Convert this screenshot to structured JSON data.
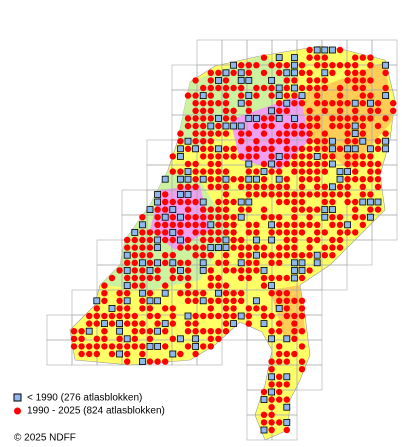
{
  "legend": {
    "items": [
      {
        "label": "< 1990   (276 atlasblokken)"
      },
      {
        "label": "1990 - 2025 (824 atlasblokken)"
      }
    ]
  },
  "footer": {
    "copyright": "© 2025 NDFF"
  }
}
